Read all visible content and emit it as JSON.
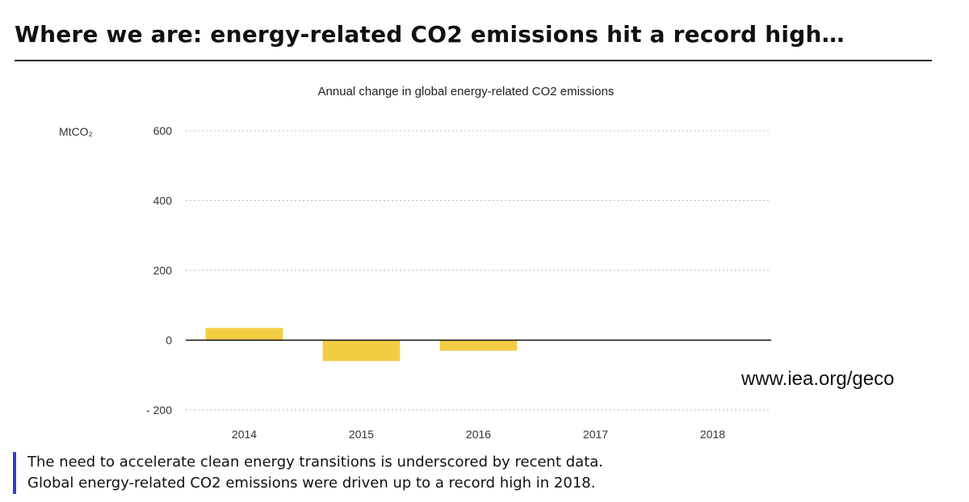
{
  "slide": {
    "title": "Where we are: energy-related CO2 emissions hit a record high…",
    "source_link": "www.iea.org/geco",
    "caption_line1": "The need to accelerate clean energy transitions is underscored by recent data.",
    "caption_line2": "Global energy-related CO2 emissions were driven up to a record high in 2018.",
    "accent_color": "#2f3fd0"
  },
  "chart_data": {
    "type": "bar",
    "title": "Annual change in global energy-related CO2 emissions",
    "ylabel": "MtCO₂",
    "xlabel": "",
    "categories": [
      "2014",
      "2015",
      "2016",
      "2017",
      "2018"
    ],
    "values": [
      35,
      -60,
      -30,
      null,
      null
    ],
    "ylim": [
      -200,
      600
    ],
    "yticks": [
      600,
      400,
      200,
      0,
      -200
    ],
    "ytick_labels": [
      "600",
      "400",
      "200",
      "0",
      "- 200"
    ],
    "grid": true,
    "bar_color": "#f2cd44"
  }
}
